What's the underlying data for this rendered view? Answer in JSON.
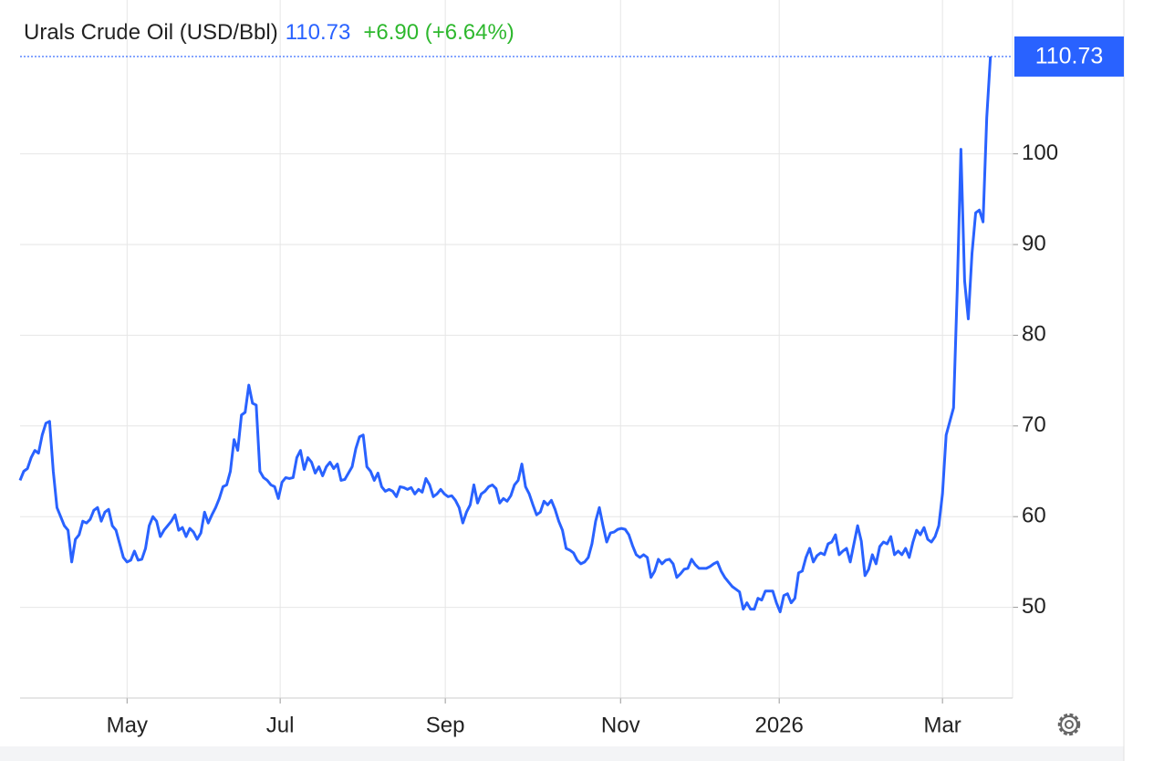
{
  "chart_data": {
    "type": "line",
    "title": "Urals Crude Oil (USD/Bbl)",
    "change": "+6.90 (+6.64%)",
    "series": [
      {
        "name": "Urals Crude Oil",
        "color": "#2962ff",
        "values": [
          64,
          65,
          65.3,
          66.5,
          67.3,
          67,
          69,
          70.3,
          70.5,
          65,
          61,
          60,
          59,
          58.5,
          55,
          57.5,
          58,
          59.5,
          59.3,
          59.7,
          60.7,
          61,
          59.5,
          60.5,
          60.8,
          59,
          58.5,
          57,
          55.5,
          55,
          55.2,
          56.2,
          55.2,
          55.3,
          56.5,
          59,
          60,
          59.5,
          57.8,
          58.5,
          59,
          59.5,
          60.2,
          58.5,
          58.8,
          57.8,
          58.7,
          58.3,
          57.5,
          58.2,
          60.5,
          59.3,
          60.2,
          61,
          62,
          63.3,
          63.5,
          65,
          68.5,
          67.3,
          71.2,
          71.5,
          74.5,
          72.5,
          72.3,
          65,
          64.3,
          64,
          63.5,
          63.3,
          62,
          63.8,
          64.3,
          64.2,
          64.3,
          66.5,
          67.3,
          65.2,
          66.5,
          66,
          64.8,
          65.5,
          64.5,
          65.5,
          66,
          65.3,
          65.8,
          64,
          64.1,
          64.8,
          65.5,
          67.5,
          68.8,
          69,
          65.5,
          65,
          64,
          64.8,
          63.3,
          62.8,
          63,
          62.8,
          62.2,
          63.3,
          63.2,
          63,
          63.2,
          62.5,
          63,
          62.7,
          64.2,
          63.5,
          62.2,
          62.5,
          63,
          62.5,
          62.2,
          62.3,
          61.8,
          61,
          59.3,
          60.5,
          61.3,
          63.5,
          61.5,
          62.5,
          62.8,
          63.3,
          63.5,
          63.1,
          61.5,
          62,
          61.7,
          62.3,
          63.5,
          64,
          65.8,
          63.3,
          62.5,
          61.3,
          60.2,
          60.5,
          61.7,
          61.3,
          61.8,
          60.8,
          59.5,
          58.5,
          56.5,
          56.3,
          56,
          55.2,
          54.8,
          55,
          55.5,
          57,
          59.5,
          61,
          59,
          57.2,
          58.2,
          58.3,
          58.6,
          58.7,
          58.6,
          58,
          56.8,
          55.8,
          55.5,
          55.8,
          55.5,
          53.3,
          54,
          55.3,
          54.8,
          55.2,
          55.3,
          54.8,
          53.3,
          53.7,
          54.2,
          54.3,
          55.3,
          54.7,
          54.3,
          54.3,
          54.3,
          54.5,
          54.8,
          55,
          54,
          53.3,
          52.8,
          52.3,
          52,
          51.7,
          49.8,
          50.5,
          49.8,
          49.8,
          51,
          50.8,
          51.8,
          51.8,
          51.8,
          50.5,
          49.5,
          51.3,
          51.5,
          50.5,
          51,
          53.8,
          54,
          55.5,
          56.5,
          55,
          55.7,
          56,
          55.8,
          57,
          57.2,
          58,
          55.8,
          56.2,
          56.5,
          55,
          57,
          59,
          57.3,
          53.5,
          54.2,
          55.8,
          54.8,
          56.7,
          57.2,
          57,
          57.8,
          55.8,
          56.2,
          55.8,
          56.5,
          55.5,
          57.2,
          58.5,
          58,
          58.8,
          57.5,
          57.2,
          57.8,
          59,
          62.5,
          69,
          70.5,
          72,
          85,
          100.5,
          86,
          81.8,
          89,
          93.5,
          93.8,
          92.5,
          104,
          110.73
        ]
      }
    ],
    "xlim": [
      0,
      269
    ],
    "xticks": [
      {
        "value": 29,
        "label": "May"
      },
      {
        "value": 70.5,
        "label": "Jul"
      },
      {
        "value": 115.25,
        "label": "Sep"
      },
      {
        "value": 162.75,
        "label": "Nov"
      },
      {
        "value": 205.75,
        "label": "2026"
      },
      {
        "value": 250,
        "label": "Mar"
      }
    ],
    "ylim": [
      40,
      115
    ],
    "yticks": [
      50,
      60,
      70,
      80,
      90,
      100
    ],
    "grid": true
  }
}
